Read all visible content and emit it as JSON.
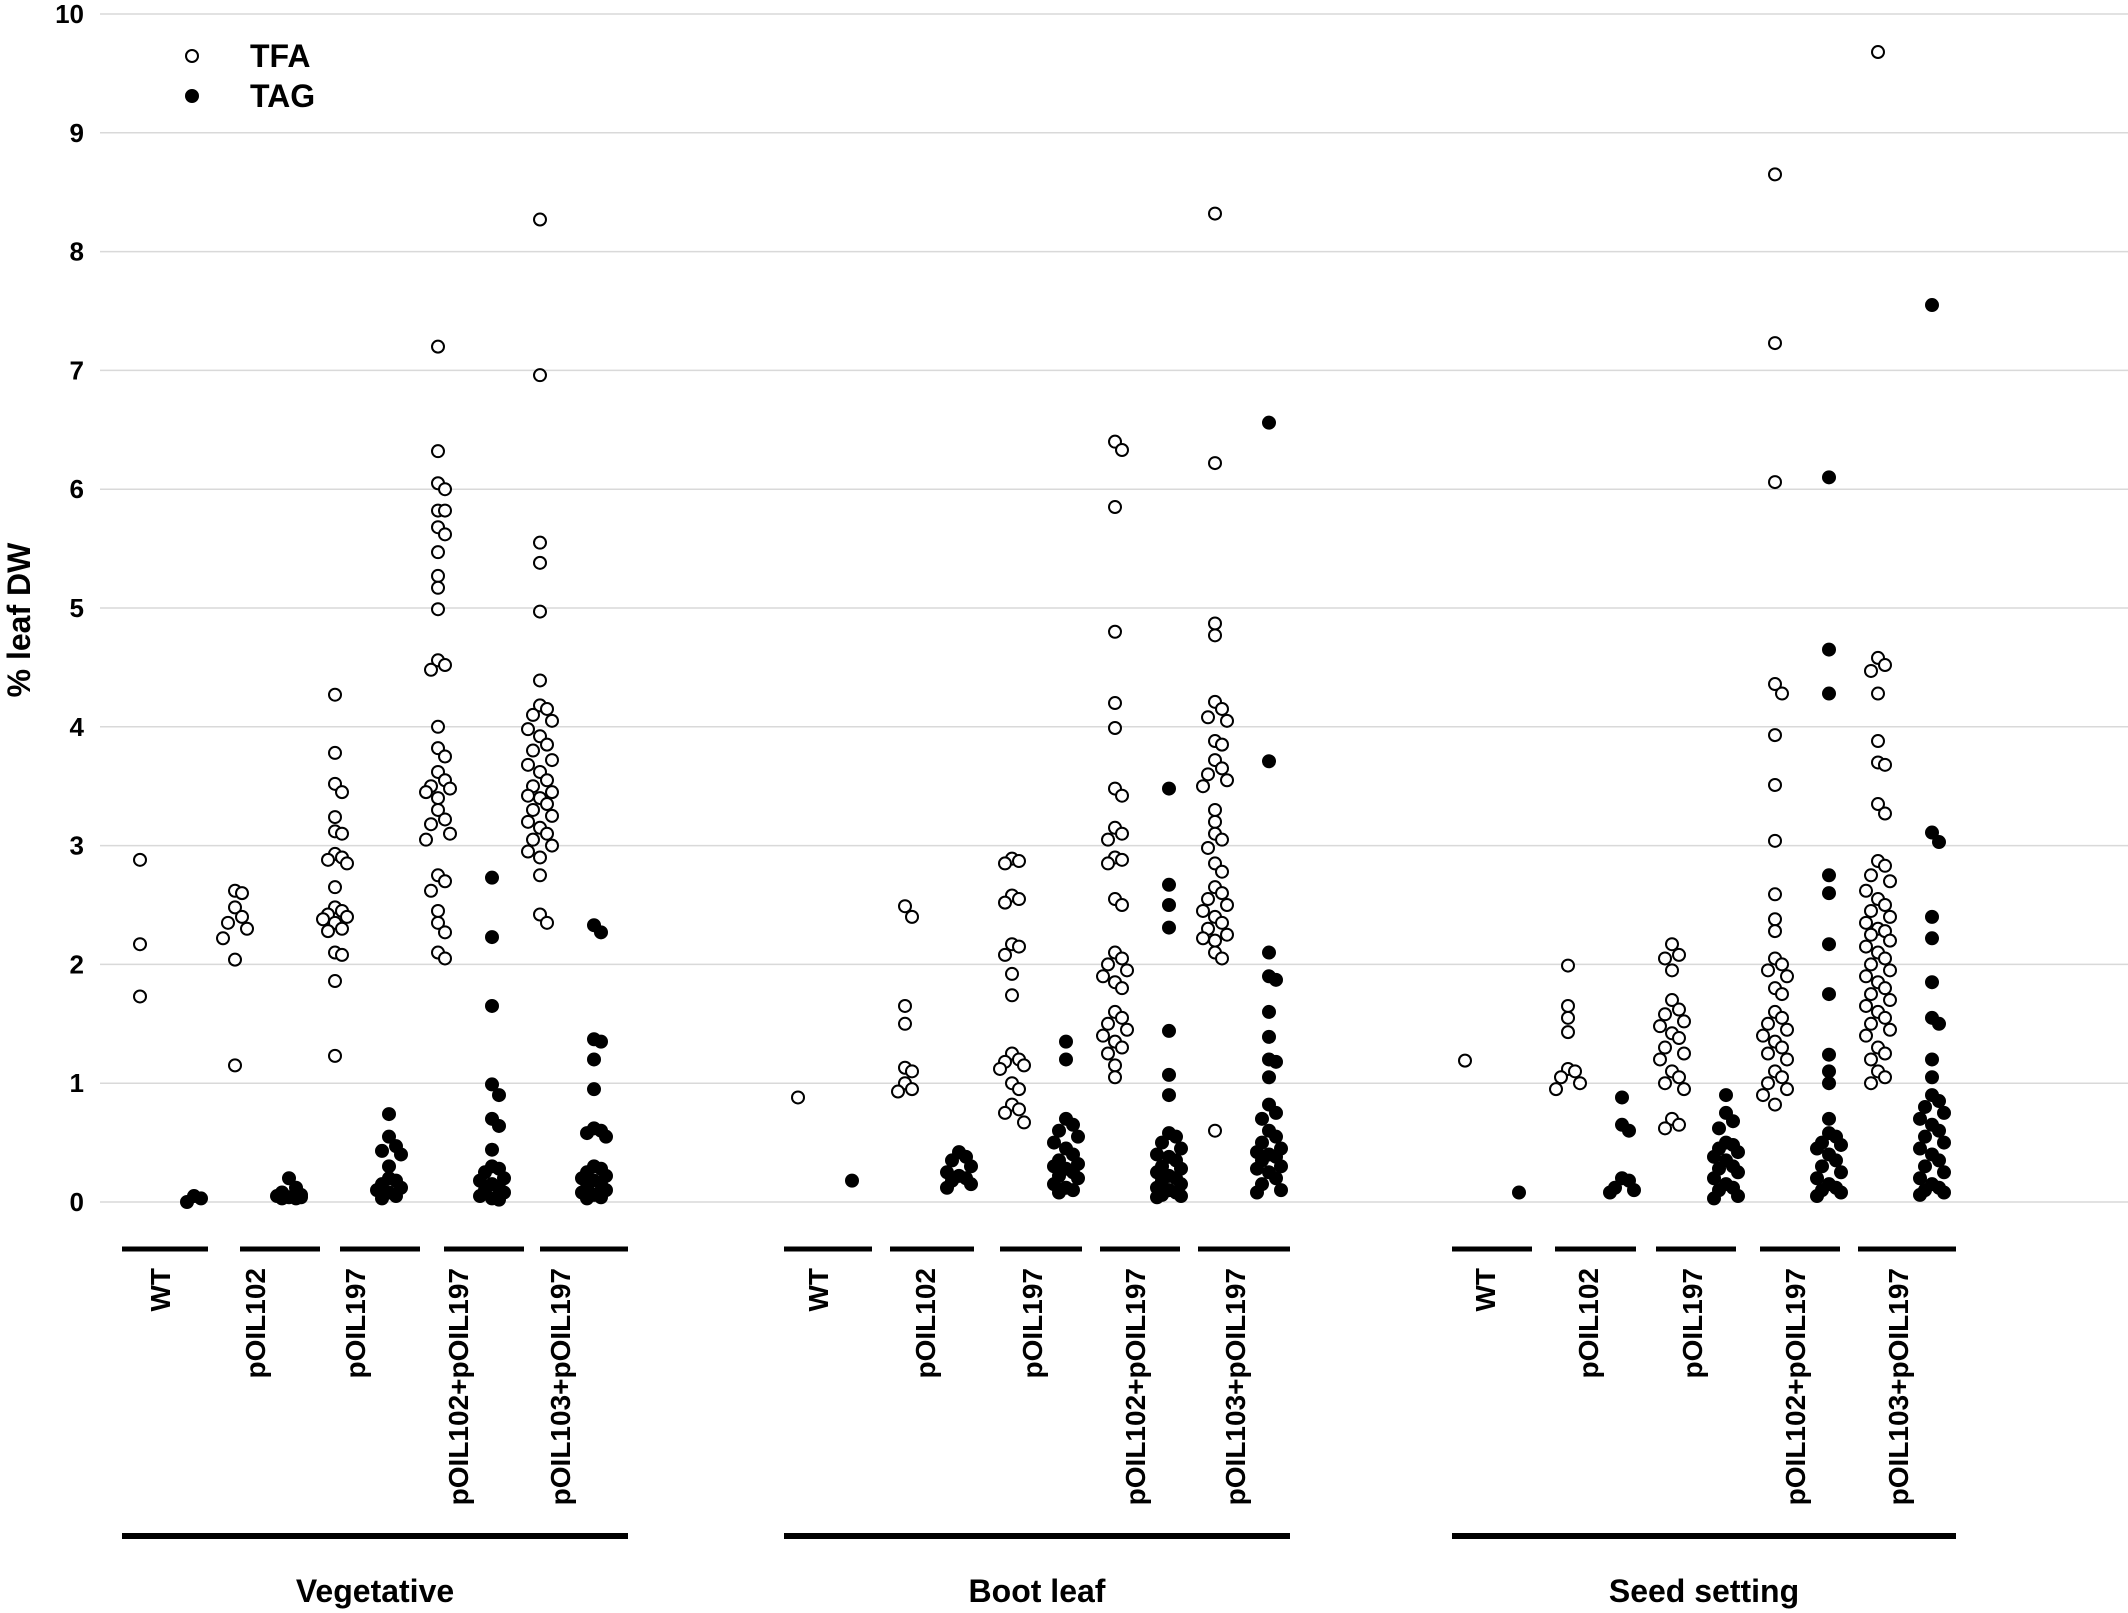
{
  "chart_data": {
    "type": "scatter",
    "ylabel": "% leaf DW",
    "ylim": [
      0,
      10
    ],
    "yticks": [
      "0",
      "1",
      "2",
      "3",
      "4",
      "5",
      "6",
      "7",
      "8",
      "9",
      "10"
    ],
    "grid": "horizontal",
    "legend_position": "top-left",
    "colors": {
      "TFA": "#ffffff",
      "TAG": "#000000",
      "stroke": "#000000",
      "grid": "#d9d9d9"
    },
    "series_names": [
      "TFA",
      "TAG"
    ],
    "genotypes": [
      "WT",
      "pOIL102",
      "pOIL197",
      "pOIL102+pOIL197",
      "pOIL103+pOIL197"
    ],
    "stages": [
      {
        "name": "Vegetative",
        "groups": [
          {
            "genotype": "WT",
            "TFA": [
              2.88,
              2.17,
              1.73
            ],
            "TAG": [
              0.05,
              0.03,
              0.0
            ]
          },
          {
            "genotype": "pOIL102",
            "TFA": [
              2.62,
              2.6,
              2.48,
              2.4,
              2.35,
              2.3,
              2.22,
              2.04,
              1.15
            ],
            "TAG": [
              0.2,
              0.12,
              0.08,
              0.06,
              0.05,
              0.04,
              0.03,
              0.03,
              0.04
            ]
          },
          {
            "genotype": "pOIL197",
            "TFA": [
              4.27,
              3.78,
              3.52,
              3.45,
              3.24,
              3.12,
              3.1,
              2.93,
              2.9,
              2.88,
              2.85,
              2.65,
              2.48,
              2.45,
              2.42,
              2.4,
              2.38,
              2.35,
              2.3,
              2.28,
              2.1,
              2.08,
              1.86,
              1.23
            ],
            "TAG": [
              0.74,
              0.55,
              0.47,
              0.43,
              0.4,
              0.3,
              0.2,
              0.18,
              0.15,
              0.12,
              0.1,
              0.08,
              0.05,
              0.03
            ]
          },
          {
            "genotype": "pOIL102+pOIL197",
            "TFA": [
              7.2,
              6.32,
              6.05,
              6.0,
              5.82,
              5.82,
              5.68,
              5.62,
              5.47,
              5.27,
              5.17,
              4.99,
              4.56,
              4.52,
              4.48,
              4.0,
              3.82,
              3.75,
              3.62,
              3.55,
              3.5,
              3.48,
              3.45,
              3.4,
              3.3,
              3.22,
              3.18,
              3.1,
              3.05,
              2.75,
              2.7,
              2.62,
              2.45,
              2.35,
              2.27,
              2.1,
              2.05
            ],
            "TAG": [
              2.73,
              2.23,
              1.65,
              0.99,
              0.9,
              0.7,
              0.64,
              0.44,
              0.3,
              0.28,
              0.25,
              0.2,
              0.18,
              0.15,
              0.12,
              0.1,
              0.08,
              0.05,
              0.03,
              0.02
            ]
          },
          {
            "genotype": "pOIL103+pOIL197",
            "TFA": [
              8.27,
              6.96,
              5.55,
              5.38,
              4.97,
              4.39,
              4.18,
              4.15,
              4.1,
              4.05,
              3.98,
              3.92,
              3.85,
              3.8,
              3.72,
              3.68,
              3.62,
              3.55,
              3.5,
              3.45,
              3.42,
              3.4,
              3.35,
              3.3,
              3.25,
              3.2,
              3.15,
              3.1,
              3.05,
              3.0,
              2.95,
              2.9,
              2.75,
              2.42,
              2.35
            ],
            "TAG": [
              2.33,
              2.27,
              1.37,
              1.35,
              1.2,
              0.95,
              0.62,
              0.6,
              0.58,
              0.55,
              0.3,
              0.28,
              0.25,
              0.22,
              0.2,
              0.18,
              0.15,
              0.12,
              0.1,
              0.08,
              0.06,
              0.04,
              0.03
            ]
          }
        ]
      },
      {
        "name": "Boot leaf",
        "groups": [
          {
            "genotype": "WT",
            "TFA": [
              0.88
            ],
            "TAG": [
              0.18
            ]
          },
          {
            "genotype": "pOIL102",
            "TFA": [
              2.49,
              2.4,
              1.65,
              1.5,
              1.13,
              1.1,
              1.0,
              0.95,
              0.93
            ],
            "TAG": [
              0.42,
              0.38,
              0.35,
              0.3,
              0.25,
              0.22,
              0.2,
              0.18,
              0.15,
              0.12
            ]
          },
          {
            "genotype": "pOIL197",
            "TFA": [
              2.89,
              2.87,
              2.85,
              2.58,
              2.55,
              2.52,
              2.17,
              2.15,
              2.08,
              1.92,
              1.74,
              1.25,
              1.2,
              1.18,
              1.15,
              1.12,
              1.0,
              0.95,
              0.82,
              0.78,
              0.75,
              0.67
            ],
            "TAG": [
              1.35,
              1.2,
              0.7,
              0.65,
              0.6,
              0.55,
              0.5,
              0.45,
              0.4,
              0.35,
              0.32,
              0.3,
              0.28,
              0.25,
              0.22,
              0.2,
              0.15,
              0.12,
              0.1,
              0.08
            ]
          },
          {
            "genotype": "pOIL102+pOIL197",
            "TFA": [
              6.4,
              6.33,
              5.85,
              4.8,
              4.2,
              3.99,
              3.48,
              3.42,
              3.15,
              3.1,
              3.05,
              2.9,
              2.88,
              2.85,
              2.55,
              2.5,
              2.1,
              2.05,
              2.0,
              1.95,
              1.9,
              1.85,
              1.8,
              1.6,
              1.55,
              1.5,
              1.45,
              1.4,
              1.35,
              1.3,
              1.25,
              1.15,
              1.05
            ],
            "TAG": [
              3.48,
              2.67,
              2.5,
              2.31,
              1.44,
              1.07,
              0.9,
              0.58,
              0.55,
              0.5,
              0.45,
              0.4,
              0.38,
              0.35,
              0.3,
              0.28,
              0.25,
              0.22,
              0.2,
              0.18,
              0.15,
              0.12,
              0.1,
              0.08,
              0.06,
              0.05,
              0.04
            ]
          },
          {
            "genotype": "pOIL103+pOIL197",
            "TFA": [
              8.32,
              6.22,
              4.87,
              4.77,
              4.21,
              4.15,
              4.08,
              4.05,
              3.88,
              3.85,
              3.72,
              3.65,
              3.6,
              3.55,
              3.5,
              3.3,
              3.2,
              3.1,
              3.05,
              2.98,
              2.85,
              2.78,
              2.65,
              2.6,
              2.55,
              2.5,
              2.45,
              2.4,
              2.35,
              2.3,
              2.25,
              2.22,
              2.2,
              2.1,
              2.05,
              0.6
            ],
            "TAG": [
              6.56,
              3.71,
              2.1,
              1.9,
              1.87,
              1.6,
              1.39,
              1.2,
              1.18,
              1.05,
              0.82,
              0.75,
              0.7,
              0.6,
              0.55,
              0.5,
              0.45,
              0.42,
              0.4,
              0.38,
              0.35,
              0.3,
              0.28,
              0.25,
              0.2,
              0.15,
              0.1,
              0.08
            ]
          }
        ]
      },
      {
        "name": "Seed setting",
        "groups": [
          {
            "genotype": "WT",
            "TFA": [
              1.19
            ],
            "TAG": [
              0.08
            ]
          },
          {
            "genotype": "pOIL102",
            "TFA": [
              1.99,
              1.65,
              1.55,
              1.43,
              1.12,
              1.1,
              1.05,
              1.0,
              0.95
            ],
            "TAG": [
              0.88,
              0.65,
              0.6,
              0.2,
              0.18,
              0.12,
              0.1,
              0.08
            ]
          },
          {
            "genotype": "pOIL197",
            "TFA": [
              2.17,
              2.08,
              2.05,
              1.95,
              1.7,
              1.62,
              1.58,
              1.52,
              1.48,
              1.42,
              1.38,
              1.3,
              1.25,
              1.2,
              1.1,
              1.05,
              1.0,
              0.95,
              0.7,
              0.65,
              0.62
            ],
            "TAG": [
              0.9,
              0.75,
              0.68,
              0.62,
              0.5,
              0.48,
              0.45,
              0.42,
              0.38,
              0.35,
              0.3,
              0.28,
              0.25,
              0.2,
              0.15,
              0.12,
              0.1,
              0.05,
              0.03
            ]
          },
          {
            "genotype": "pOIL102+pOIL197",
            "TFA": [
              8.65,
              7.23,
              6.06,
              4.36,
              4.28,
              3.93,
              3.51,
              3.04,
              2.59,
              2.38,
              2.28,
              2.05,
              2.0,
              1.95,
              1.9,
              1.8,
              1.75,
              1.6,
              1.55,
              1.5,
              1.45,
              1.4,
              1.35,
              1.3,
              1.25,
              1.2,
              1.1,
              1.05,
              1.0,
              0.95,
              0.9,
              0.82
            ],
            "TAG": [
              6.1,
              4.65,
              4.28,
              2.75,
              2.6,
              2.17,
              1.75,
              1.24,
              1.1,
              1.0,
              0.7,
              0.58,
              0.55,
              0.5,
              0.48,
              0.45,
              0.4,
              0.35,
              0.3,
              0.25,
              0.2,
              0.15,
              0.12,
              0.1,
              0.08,
              0.05
            ]
          },
          {
            "genotype": "pOIL103+pOIL197",
            "TFA": [
              9.68,
              4.58,
              4.52,
              4.47,
              4.28,
              3.88,
              3.7,
              3.68,
              3.35,
              3.27,
              2.87,
              2.83,
              2.75,
              2.7,
              2.62,
              2.55,
              2.5,
              2.45,
              2.4,
              2.35,
              2.3,
              2.28,
              2.25,
              2.2,
              2.15,
              2.1,
              2.05,
              2.0,
              1.95,
              1.9,
              1.85,
              1.8,
              1.75,
              1.7,
              1.65,
              1.6,
              1.55,
              1.5,
              1.45,
              1.4,
              1.3,
              1.25,
              1.2,
              1.1,
              1.05,
              1.0
            ],
            "TAG": [
              7.55,
              3.11,
              3.03,
              2.4,
              2.22,
              1.85,
              1.55,
              1.5,
              1.2,
              1.05,
              0.9,
              0.85,
              0.8,
              0.75,
              0.7,
              0.65,
              0.6,
              0.55,
              0.5,
              0.45,
              0.4,
              0.35,
              0.3,
              0.25,
              0.2,
              0.15,
              0.12,
              0.1,
              0.08,
              0.06
            ]
          }
        ]
      }
    ]
  }
}
